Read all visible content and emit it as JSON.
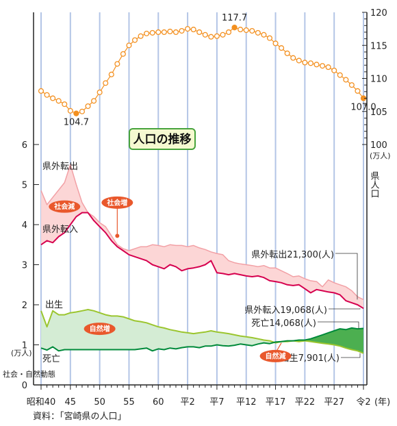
{
  "chart_data": {
    "type": "line",
    "title": "人口の推移",
    "source": "資料：「宮崎県の人口」",
    "x_ticks": [
      "昭和40",
      "45",
      "50",
      "55",
      "60",
      "平2",
      "平7",
      "平12",
      "平17",
      "平22",
      "平27",
      "令2"
    ],
    "x_unit": "(年)",
    "right_axis": {
      "label": "県人口",
      "unit": "(万人)",
      "ticks": [
        "100",
        "105",
        "110",
        "115",
        "120"
      ],
      "range": [
        100,
        120
      ]
    },
    "left_axis": {
      "label": "社会・自然動態",
      "unit": "(万人)",
      "ticks": [
        "0",
        "1",
        "2",
        "3",
        "4",
        "5",
        "6"
      ],
      "range": [
        0,
        6
      ]
    },
    "population": {
      "x": [
        1965,
        1966,
        1967,
        1968,
        1969,
        1970,
        1971,
        1972,
        1973,
        1974,
        1975,
        1976,
        1977,
        1978,
        1979,
        1980,
        1981,
        1982,
        1983,
        1984,
        1985,
        1986,
        1987,
        1988,
        1989,
        1990,
        1991,
        1992,
        1993,
        1994,
        1995,
        1996,
        1997,
        1998,
        1999,
        2000,
        2001,
        2002,
        2003,
        2004,
        2005,
        2006,
        2007,
        2008,
        2009,
        2010,
        2011,
        2012,
        2013,
        2014,
        2015,
        2016,
        2017,
        2018,
        2019,
        2020
      ],
      "values": [
        108.1,
        107.5,
        107.0,
        106.6,
        106.1,
        105.1,
        104.7,
        105.0,
        105.8,
        106.6,
        107.9,
        109.3,
        110.6,
        112.2,
        113.7,
        115.0,
        115.8,
        116.4,
        116.8,
        116.9,
        117.0,
        117.0,
        117.1,
        117.0,
        117.2,
        117.5,
        117.4,
        117.0,
        116.6,
        116.3,
        116.4,
        116.6,
        117.0,
        117.7,
        117.4,
        117.3,
        117.2,
        116.9,
        116.6,
        116.1,
        115.3,
        114.6,
        113.8,
        113.1,
        112.7,
        112.4,
        112.3,
        112.1,
        111.9,
        111.7,
        111.2,
        110.5,
        109.8,
        109.0,
        108.1,
        107.0
      ],
      "annotations": [
        {
          "label": "104.7",
          "x": 1971,
          "y": 104.7
        },
        {
          "label": "117.7",
          "x": 1998,
          "y": 117.7
        },
        {
          "label": "107.0",
          "x": 2020,
          "y": 107.0
        }
      ]
    },
    "series": [
      {
        "name": "県外転出",
        "x": [
          1965,
          1966,
          1969,
          1970,
          1971,
          1972,
          1973,
          1974,
          1975,
          1976,
          1978,
          1979,
          1980,
          1981,
          1982,
          1983,
          1984,
          1985,
          1986,
          1987,
          1988,
          1989,
          1990,
          1991,
          1992,
          1993,
          1994,
          1995,
          1996,
          1997,
          1998,
          1999,
          2000,
          2001,
          2002,
          2003,
          2004,
          2005,
          2006,
          2007,
          2008,
          2009,
          2010,
          2011,
          2012,
          2013,
          2014,
          2015,
          2016,
          2017,
          2018,
          2019,
          2020
        ],
        "values": [
          4.85,
          4.5,
          5.05,
          5.5,
          5.0,
          4.55,
          4.3,
          4.2,
          4.05,
          3.95,
          3.5,
          3.4,
          3.35,
          3.4,
          3.45,
          3.45,
          3.5,
          3.48,
          3.45,
          3.5,
          3.48,
          3.48,
          3.45,
          3.48,
          3.42,
          3.38,
          3.32,
          3.28,
          3.25,
          3.1,
          3.05,
          3.02,
          3.0,
          2.98,
          2.95,
          2.98,
          2.92,
          2.92,
          2.85,
          2.78,
          2.7,
          2.72,
          2.65,
          2.6,
          2.58,
          2.45,
          2.62,
          2.55,
          2.5,
          2.45,
          2.35,
          2.2,
          2.13
        ],
        "legend": "県外転出21,300(人)"
      },
      {
        "name": "県外転入",
        "x": [
          1965,
          1966,
          1967,
          1968,
          1969,
          1970,
          1971,
          1972,
          1973,
          1974,
          1975,
          1976,
          1977,
          1978,
          1979,
          1980,
          1981,
          1982,
          1983,
          1984,
          1985,
          1986,
          1987,
          1988,
          1989,
          1990,
          1991,
          1992,
          1993,
          1994,
          1995,
          1996,
          1997,
          1998,
          1999,
          2000,
          2001,
          2002,
          2003,
          2004,
          2005,
          2006,
          2007,
          2008,
          2009,
          2010,
          2011,
          2012,
          2013,
          2014,
          2015,
          2016,
          2017,
          2018,
          2019,
          2020
        ],
        "values": [
          3.5,
          3.6,
          3.55,
          3.7,
          3.8,
          4.0,
          4.2,
          4.3,
          4.3,
          4.1,
          3.95,
          3.8,
          3.6,
          3.45,
          3.35,
          3.25,
          3.2,
          3.15,
          3.1,
          3.0,
          2.95,
          2.9,
          3.0,
          2.95,
          2.85,
          2.9,
          2.92,
          2.95,
          3.0,
          3.1,
          2.8,
          2.78,
          2.75,
          2.78,
          2.75,
          2.72,
          2.7,
          2.72,
          2.68,
          2.6,
          2.58,
          2.55,
          2.5,
          2.48,
          2.5,
          2.4,
          2.3,
          2.38,
          2.35,
          2.32,
          2.3,
          2.25,
          2.1,
          2.05,
          2.0,
          1.91
        ],
        "legend": "県外転入19,068(人)"
      },
      {
        "name": "出生",
        "x": [
          1965,
          1966,
          1967,
          1968,
          1969,
          1970,
          1971,
          1972,
          1973,
          1974,
          1975,
          1976,
          1977,
          1978,
          1979,
          1980,
          1981,
          1982,
          1983,
          1984,
          1985,
          1986,
          1987,
          1988,
          1989,
          1990,
          1991,
          1992,
          1993,
          1994,
          1995,
          1996,
          1997,
          1998,
          1999,
          2000,
          2001,
          2002,
          2003,
          2004,
          2005,
          2006,
          2007,
          2008,
          2009,
          2010,
          2011,
          2012,
          2013,
          2014,
          2015,
          2016,
          2017,
          2018,
          2019,
          2020
        ],
        "values": [
          1.85,
          1.45,
          1.85,
          1.75,
          1.75,
          1.8,
          1.82,
          1.85,
          1.88,
          1.85,
          1.8,
          1.75,
          1.72,
          1.72,
          1.7,
          1.65,
          1.6,
          1.58,
          1.55,
          1.5,
          1.45,
          1.42,
          1.38,
          1.35,
          1.32,
          1.3,
          1.28,
          1.3,
          1.32,
          1.35,
          1.32,
          1.3,
          1.28,
          1.25,
          1.22,
          1.2,
          1.18,
          1.15,
          1.12,
          1.1,
          1.05,
          1.08,
          1.08,
          1.1,
          1.08,
          1.1,
          1.08,
          1.06,
          1.04,
          1.02,
          1.0,
          0.97,
          0.92,
          0.88,
          0.85,
          0.79
        ],
        "legend": "出生7,901(人)"
      },
      {
        "name": "死亡",
        "x": [
          1965,
          1966,
          1967,
          1968,
          1969,
          1970,
          1971,
          1972,
          1973,
          1974,
          1975,
          1976,
          1977,
          1978,
          1979,
          1980,
          1981,
          1982,
          1983,
          1984,
          1985,
          1986,
          1987,
          1988,
          1989,
          1990,
          1991,
          1992,
          1993,
          1994,
          1995,
          1996,
          1997,
          1998,
          1999,
          2000,
          2001,
          2002,
          2003,
          2004,
          2005,
          2006,
          2007,
          2008,
          2009,
          2010,
          2011,
          2012,
          2013,
          2014,
          2015,
          2016,
          2017,
          2018,
          2019,
          2020
        ],
        "values": [
          0.92,
          0.87,
          0.95,
          0.85,
          0.88,
          0.88,
          0.88,
          0.88,
          0.88,
          0.88,
          0.88,
          0.88,
          0.88,
          0.88,
          0.88,
          0.88,
          0.88,
          0.9,
          0.92,
          0.85,
          0.9,
          0.88,
          0.92,
          0.9,
          0.93,
          0.95,
          0.95,
          0.93,
          0.97,
          0.97,
          1.0,
          0.98,
          0.97,
          0.99,
          1.02,
          1.0,
          0.98,
          1.02,
          1.05,
          1.03,
          1.07,
          1.08,
          1.1,
          1.1,
          1.12,
          1.12,
          1.15,
          1.2,
          1.25,
          1.3,
          1.35,
          1.4,
          1.38,
          1.42,
          1.4,
          1.41
        ],
        "legend": "死亡14,068(人)"
      }
    ],
    "badges": [
      {
        "label": "社会減",
        "x": 1969,
        "y": 4.45
      },
      {
        "label": "社会増",
        "x": 1978,
        "y": 4.55
      },
      {
        "label": "自然増",
        "x": 1975,
        "y": 1.4
      },
      {
        "label": "自然減",
        "x": 2005,
        "y": 0.72
      }
    ],
    "colors": {
      "population": "#f39020",
      "out_migration": "#f2a0a5",
      "in_migration": "#d6004e",
      "births": "#9bc52e",
      "deaths": "#008a3a",
      "social_fill": "#fcd6d6",
      "social_fill_dark": "#f09aa0",
      "natural_inc_fill": "#d4ecd4",
      "natural_dec_fill": "#4caf50",
      "grid": "#b3c5e6",
      "badge": "#e9582c",
      "title_border": "#47a33c",
      "title_bg": "#f5f9d0"
    }
  }
}
